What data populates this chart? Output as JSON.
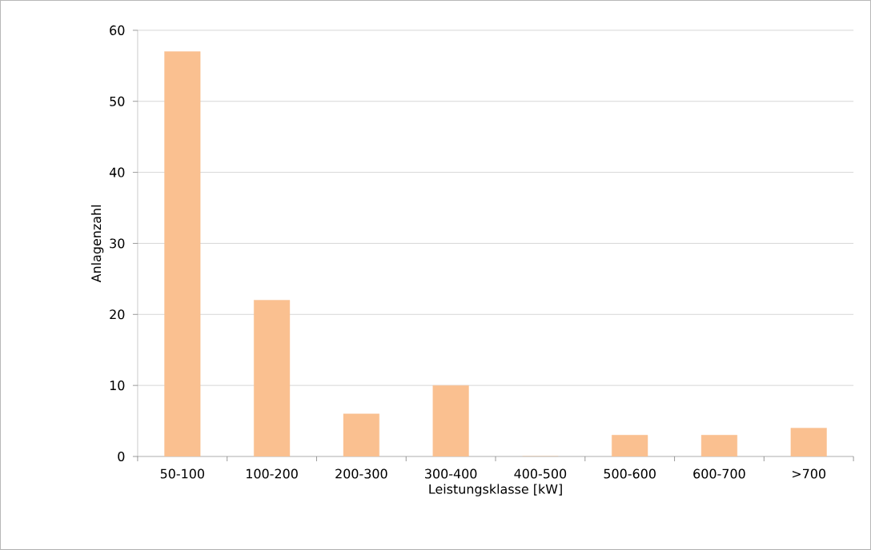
{
  "chart_data": {
    "type": "bar",
    "xlabel": "Leistungsklasse [kW]",
    "ylabel": "Anlagenzahl",
    "categories": [
      "50-100",
      "100-200",
      "200-300",
      "300-400",
      "400-500",
      "500-600",
      "600-700",
      ">700"
    ],
    "values": [
      57,
      22,
      6,
      10,
      0,
      3,
      3,
      4
    ],
    "color": "#fac090",
    "ylim": [
      0,
      60
    ],
    "yticks": [
      0,
      10,
      20,
      30,
      40,
      50,
      60
    ],
    "grid": "y"
  }
}
